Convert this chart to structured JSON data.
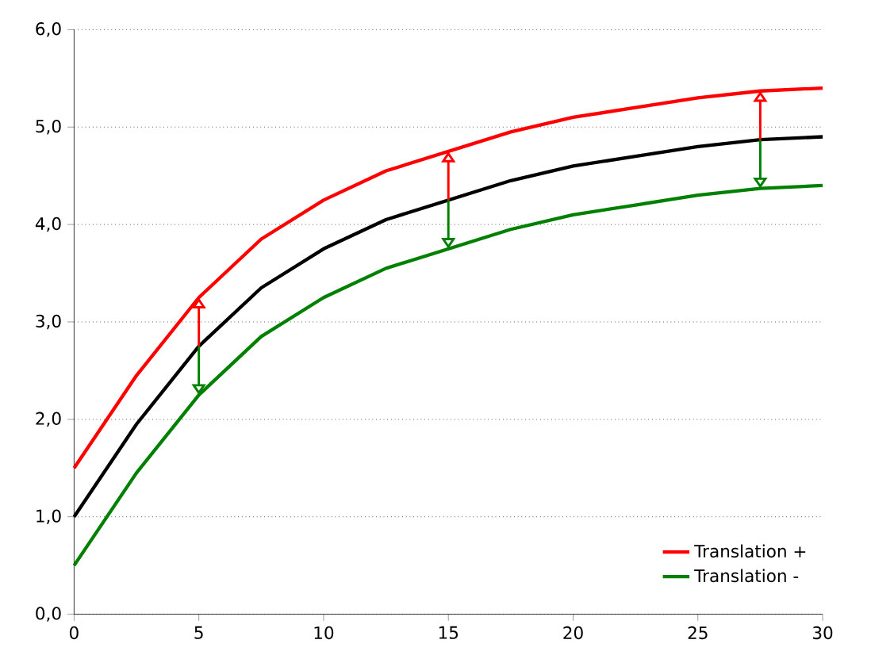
{
  "chart_data": {
    "type": "line",
    "x": [
      0,
      2.5,
      5,
      7.5,
      10,
      12.5,
      15,
      17.5,
      20,
      22.5,
      25,
      27.5,
      30
    ],
    "series": [
      {
        "color": "#000000",
        "values": [
          1.0,
          1.95,
          2.75,
          3.35,
          3.75,
          4.05,
          4.25,
          4.45,
          4.6,
          4.7,
          4.8,
          4.87,
          4.9
        ]
      },
      {
        "name": "Translation +",
        "color": "#ff0000",
        "values": [
          1.5,
          2.45,
          3.25,
          3.85,
          4.25,
          4.55,
          4.75,
          4.95,
          5.1,
          5.2,
          5.3,
          5.37,
          5.4
        ]
      },
      {
        "name": "Translation -",
        "color": "#008000",
        "values": [
          0.5,
          1.45,
          2.25,
          2.85,
          3.25,
          3.55,
          3.75,
          3.95,
          4.1,
          4.2,
          4.3,
          4.37,
          4.4
        ]
      }
    ],
    "xlim": [
      0,
      30
    ],
    "xticks": [
      0,
      5,
      10,
      15,
      20,
      25,
      30
    ],
    "ylim": [
      0,
      6
    ],
    "yticks": [
      {
        "value": 0,
        "label": "0,0"
      },
      {
        "value": 1,
        "label": "1,0"
      },
      {
        "value": 2,
        "label": "2,0"
      },
      {
        "value": 3,
        "label": "3,0"
      },
      {
        "value": 4,
        "label": "4,0"
      },
      {
        "value": 5,
        "label": "5,0"
      },
      {
        "value": 6,
        "label": "6,0"
      }
    ],
    "grid": "y",
    "legend": "bottom right",
    "marker": "none",
    "line_style": "solid"
  }
}
